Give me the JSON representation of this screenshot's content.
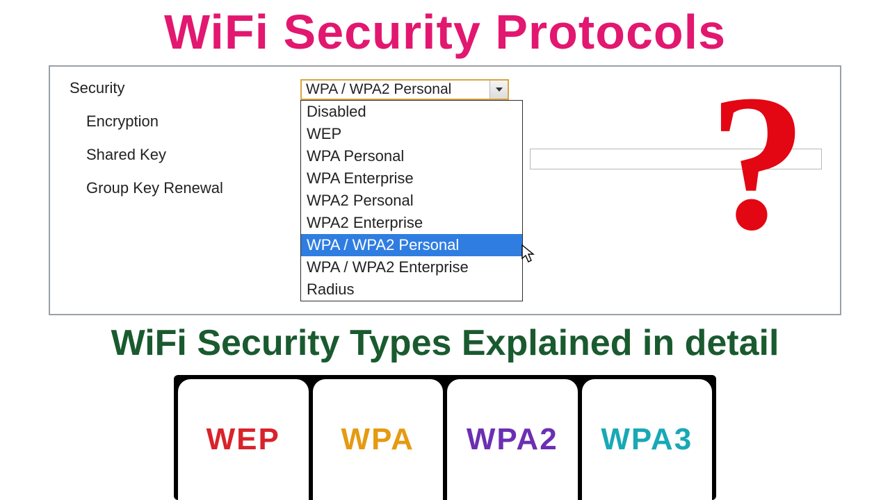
{
  "title": {
    "text": "WiFi Security Protocols",
    "color": "#e21770",
    "fontsize": 70
  },
  "subtitle": {
    "text": "WiFi Security Types Explained in detail",
    "color": "#195a2f",
    "fontsize": 52
  },
  "question_mark": {
    "glyph": "?",
    "color": "#e30613"
  },
  "form": {
    "security_label": "Security",
    "encryption_label": "Encryption",
    "shared_key_label": "Shared Key",
    "group_key_label": "Group Key Renewal"
  },
  "dropdown": {
    "selected": "WPA / WPA2 Personal",
    "highlight_bg": "#2f7de1",
    "border_color": "#d9a441",
    "options": [
      "Disabled",
      "WEP",
      "WPA Personal",
      "WPA Enterprise",
      "WPA2 Personal",
      "WPA2 Enterprise",
      "WPA / WPA2 Personal",
      "WPA / WPA2 Enterprise",
      "Radius"
    ],
    "highlighted_index": 6
  },
  "tabs": [
    {
      "label": "WEP",
      "color": "#d8232a"
    },
    {
      "label": "WPA",
      "color": "#e59a12"
    },
    {
      "label": "WPA2",
      "color": "#6b2fb3"
    },
    {
      "label": "WPA3",
      "color": "#17a9b5"
    }
  ]
}
